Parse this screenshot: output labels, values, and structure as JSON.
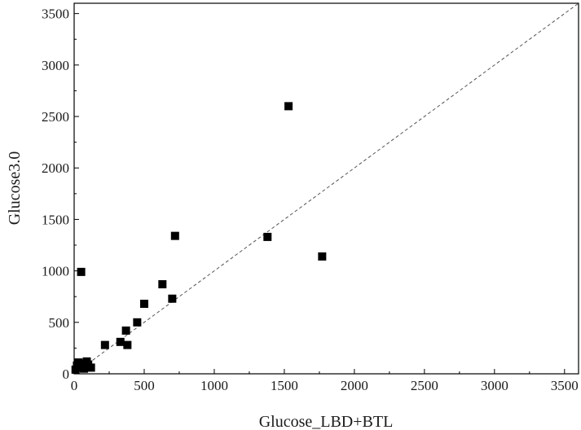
{
  "chart_data": {
    "type": "scatter",
    "title": "",
    "xlabel": "Glucose_LBD+BTL",
    "ylabel": "Glucose3.0",
    "xlim": [
      0,
      3600
    ],
    "ylim": [
      0,
      3600
    ],
    "xticks": [
      0,
      500,
      1000,
      1500,
      2000,
      2500,
      3000,
      3500
    ],
    "yticks": [
      0,
      500,
      1000,
      1500,
      2000,
      2500,
      3000,
      3500
    ],
    "grid": false,
    "legend": "none",
    "marker": "square",
    "marker_color": "#000000",
    "reference_line": {
      "style": "dashed",
      "color": "#555555",
      "from": [
        0,
        0
      ],
      "to": [
        3600,
        3600
      ]
    },
    "series": [
      {
        "points": [
          [
            10,
            40
          ],
          [
            20,
            80
          ],
          [
            30,
            110
          ],
          [
            40,
            60
          ],
          [
            50,
            990
          ],
          [
            60,
            100
          ],
          [
            70,
            50
          ],
          [
            90,
            120
          ],
          [
            100,
            90
          ],
          [
            120,
            60
          ],
          [
            220,
            280
          ],
          [
            330,
            310
          ],
          [
            370,
            420
          ],
          [
            380,
            280
          ],
          [
            450,
            500
          ],
          [
            500,
            680
          ],
          [
            630,
            870
          ],
          [
            700,
            730
          ],
          [
            720,
            1340
          ],
          [
            1380,
            1330
          ],
          [
            1530,
            2600
          ],
          [
            1770,
            1140
          ]
        ]
      }
    ]
  }
}
